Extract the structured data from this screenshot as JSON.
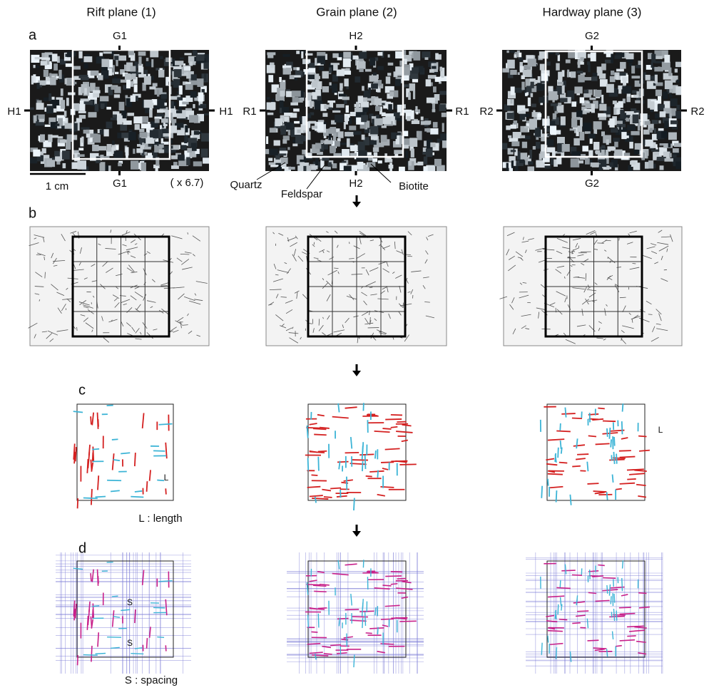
{
  "columns": [
    "Rift plane (1)",
    "Grain plane (2)",
    "Hardway plane (3)"
  ],
  "panel_labels": [
    "a",
    "b",
    "c",
    "d"
  ],
  "orientation_labels": [
    {
      "top": "G1",
      "bottom": "G1",
      "left": "H1",
      "right": "H1"
    },
    {
      "top": "H2",
      "bottom": "H2",
      "left": "R1",
      "right": "R1"
    },
    {
      "top": "G2",
      "bottom": "G2",
      "left": "R2",
      "right": "R2"
    }
  ],
  "scale_bar": "1 cm",
  "magnification": "( x 6.7)",
  "minerals": [
    "Quartz",
    "Feldspar",
    "Biotite"
  ],
  "length_legend": "L : length",
  "length_marks": [
    "L",
    "L"
  ],
  "spacing_legend": "S : spacing",
  "spacing_marks": [
    "S",
    "S"
  ]
}
